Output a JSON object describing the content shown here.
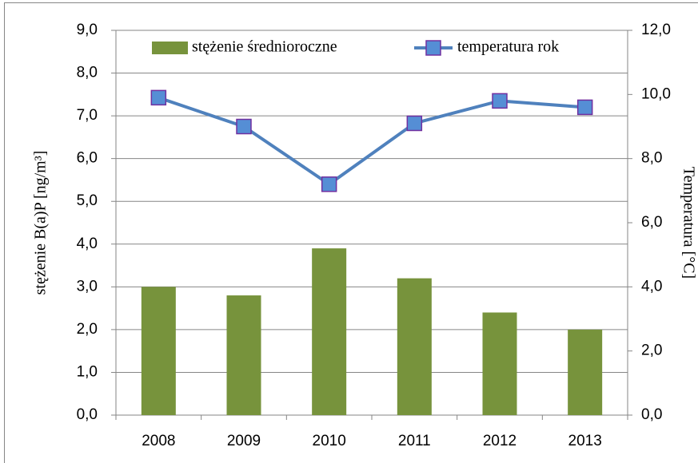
{
  "chart_data": {
    "type": "bar_line",
    "categories": [
      "2008",
      "2009",
      "2010",
      "2011",
      "2012",
      "2013"
    ],
    "series": [
      {
        "name": "stężenie średnioroczne",
        "color": "#77933c",
        "type": "bar",
        "axis": "y",
        "values": [
          3.0,
          2.8,
          3.9,
          3.2,
          2.4,
          2.0
        ]
      },
      {
        "name": "temperatura rok",
        "color": "#4f81bd",
        "marker_color": "#558ed5",
        "type": "line",
        "axis": "y2",
        "values": [
          9.9,
          9.0,
          7.2,
          9.1,
          9.8,
          9.6
        ]
      }
    ],
    "y_label": "stężenie B(a)P [ng/m³]",
    "y2_label": "Temperatura [°C]",
    "ylim": [
      0,
      9
    ],
    "yticks": [
      {
        "value": 0,
        "label": "0,0"
      },
      {
        "value": 1,
        "label": "1,0"
      },
      {
        "value": 2,
        "label": "2,0"
      },
      {
        "value": 3,
        "label": "3,0"
      },
      {
        "value": 4,
        "label": "4,0"
      },
      {
        "value": 5,
        "label": "5,0"
      },
      {
        "value": 6,
        "label": "6,0"
      },
      {
        "value": 7,
        "label": "7,0"
      },
      {
        "value": 8,
        "label": "8,0"
      },
      {
        "value": 9,
        "label": "9,0"
      }
    ],
    "y2lim": [
      0,
      12
    ],
    "y2ticks": [
      {
        "value": 0,
        "label": "0,0"
      },
      {
        "value": 2,
        "label": "2,0"
      },
      {
        "value": 4,
        "label": "4,0"
      },
      {
        "value": 6,
        "label": "6,0"
      },
      {
        "value": 8,
        "label": "8,0"
      },
      {
        "value": 10,
        "label": "10,0"
      },
      {
        "value": 12,
        "label": "12,0"
      }
    ],
    "grid": true,
    "legend": "top"
  }
}
